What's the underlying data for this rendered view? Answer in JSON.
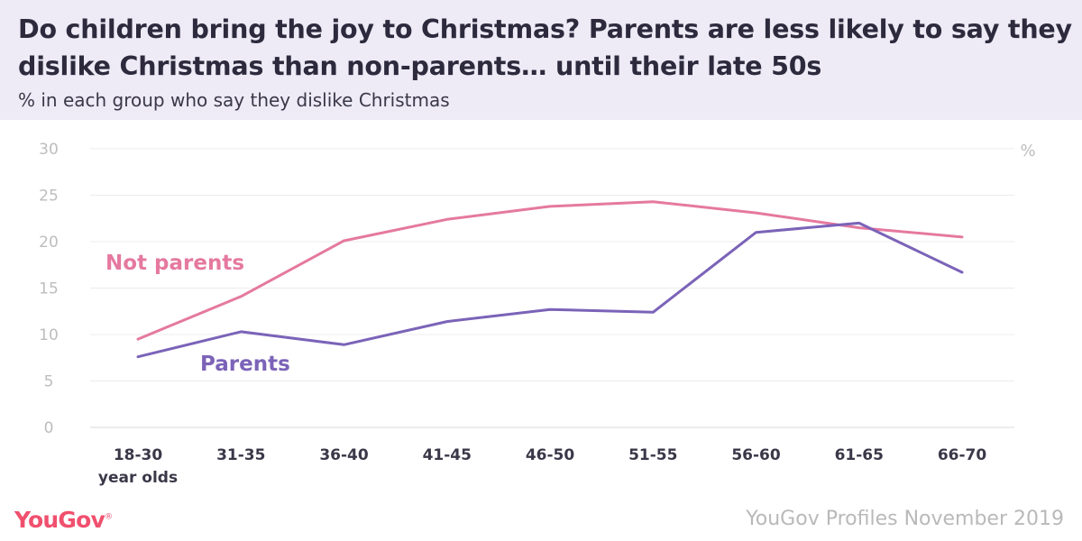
{
  "header": {
    "title": "Do children bring the joy to Christmas? Parents are less likely to say they dislike Christmas than non-parents… until their late 50s",
    "subtitle": "% in each group who say they dislike Christmas"
  },
  "footer": {
    "logo": "YouGov",
    "source": "YouGov Profiles November 2019"
  },
  "colors": {
    "not_parents": "#e5799f",
    "parents": "#7b63b8",
    "header_bg": "#eeebf7"
  },
  "chart_data": {
    "type": "line",
    "categories": [
      "18-30",
      "31-35",
      "36-40",
      "41-45",
      "46-50",
      "51-55",
      "56-60",
      "61-65",
      "66-70"
    ],
    "category_sublabel": "year olds",
    "series": [
      {
        "name": "Not parents",
        "values": [
          9.5,
          14.1,
          20.1,
          22.4,
          23.8,
          24.3,
          23.1,
          21.5,
          20.5
        ]
      },
      {
        "name": "Parents",
        "values": [
          7.6,
          10.3,
          8.9,
          11.4,
          12.7,
          12.4,
          21.0,
          22.0,
          16.7
        ]
      }
    ],
    "ylim": [
      0,
      30
    ],
    "yticks": [
      0,
      5,
      10,
      15,
      20,
      25,
      30
    ],
    "unit_label": "%",
    "grid": true
  }
}
